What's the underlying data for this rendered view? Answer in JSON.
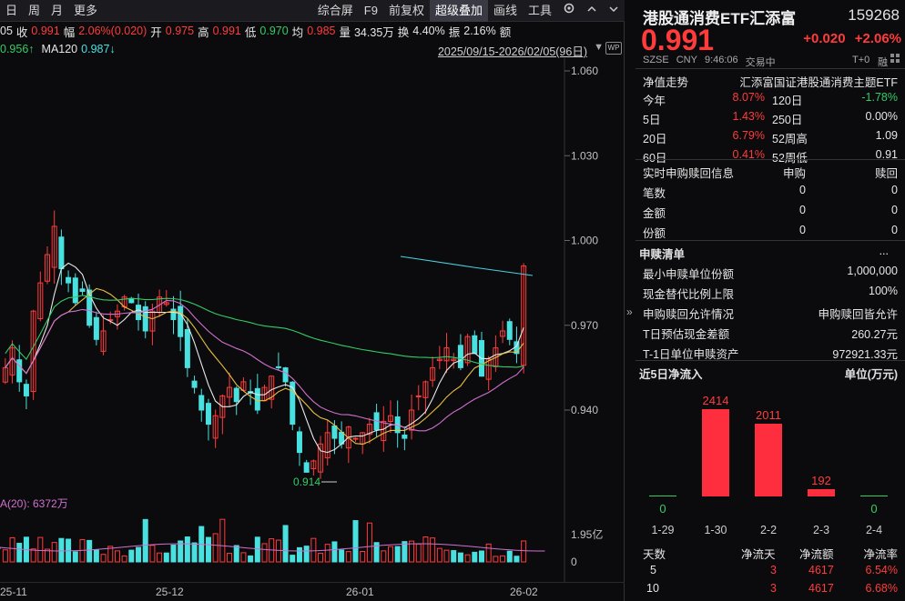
{
  "toolbar": {
    "left_items": [
      "日",
      "周",
      "月",
      "更多"
    ],
    "right_items": [
      "综合屏",
      "F9",
      "前复权",
      "超级叠加",
      "画线",
      "工具"
    ],
    "active_item": "超级叠加"
  },
  "quote": {
    "prev_suffix": "05",
    "close_label": "收",
    "close_value": "0.991",
    "amp_label": "幅",
    "amp_value": "2.06%(0.020)",
    "open_label": "开",
    "open_value": "0.975",
    "high_label": "高",
    "high_value": "0.991",
    "low_label": "低",
    "low_value": "0.970",
    "avg_label": "均",
    "avg_value": "0.985",
    "vol_label": "量",
    "vol_value": "34.35万",
    "turnover_label": "换",
    "turnover_value": "4.40%",
    "swing_label": "振",
    "swing_value": "2.16%",
    "amount_label": "额"
  },
  "ma": {
    "ma_prev_value": "0.956↑",
    "ma120_label": "MA120",
    "ma120_value": "0.987↓"
  },
  "date_range": "2025/09/15-2026/02/05(96日)",
  "price_axis": [
    "1.060",
    "1.030",
    "1.000",
    "0.970",
    "0.940"
  ],
  "vol_axis": [
    "1.95亿",
    "0"
  ],
  "vol_label": "A(20): 6372万",
  "low_marker": "0.914",
  "x_labels": [
    "25-11",
    "25-12",
    "26-01",
    "26-02"
  ],
  "colors": {
    "up": "#ff3b3b",
    "down": "#49e0e0",
    "ma5": "#e8e8e8",
    "ma10": "#e8c040",
    "ma20": "#d070d0",
    "ma60": "#33cc66",
    "ma120": "#49d0e0"
  },
  "fund": {
    "name": "港股通消费ETF汇添富",
    "code": "159268",
    "price": "0.991",
    "change": "+0.020",
    "change_pct": "+2.06%",
    "market": "SZSE",
    "currency": "CNY",
    "time": "9:46:06",
    "state": "交易中",
    "settle": "T+0",
    "margin": "融"
  },
  "nav": {
    "title": "净值走势",
    "index_name": "汇添富国证港股通消费主题ETF",
    "rows": [
      {
        "l1": "今年",
        "v1": "8.07%",
        "l2": "120日",
        "v2": "-1.78%"
      },
      {
        "l1": "5日",
        "v1": "1.43%",
        "l2": "250日",
        "v2": "0.00%"
      },
      {
        "l1": "20日",
        "v1": "6.79%",
        "l2": "52周高",
        "v2": "1.09"
      },
      {
        "l1": "60日",
        "v1": "0.41%",
        "l2": "52周低",
        "v2": "0.91"
      }
    ]
  },
  "realtime": {
    "title": "实时申购赎回信息",
    "col1": "申购",
    "col2": "赎回",
    "rows": [
      {
        "label": "笔数",
        "a": "0",
        "b": "0"
      },
      {
        "label": "金额",
        "a": "0",
        "b": "0"
      },
      {
        "label": "份额",
        "a": "0",
        "b": "0"
      }
    ]
  },
  "list": {
    "title": "申赎清单",
    "more": "...",
    "rows": [
      {
        "label": "最小申赎单位份额",
        "value": "1,000,000"
      },
      {
        "label": "现金替代比例上限",
        "value": "100%"
      },
      {
        "label": "申购赎回允许情况",
        "value": "申购赎回皆允许"
      },
      {
        "label": "T日预估现金差额",
        "value": "260.27元"
      },
      {
        "label": "T-1日单位申赎资产",
        "value": "972921.33元"
      }
    ]
  },
  "netflow": {
    "title": "近5日净流入",
    "unit": "单位(万元)",
    "bars": [
      {
        "date": "1-29",
        "value": 0
      },
      {
        "date": "1-30",
        "value": 2414
      },
      {
        "date": "2-2",
        "value": 2011
      },
      {
        "date": "2-3",
        "value": 192
      },
      {
        "date": "2-4",
        "value": 0
      }
    ],
    "table_headers": [
      "天数",
      "净流天",
      "净流额",
      "净流率"
    ],
    "table_rows": [
      [
        "5",
        "3",
        "4617",
        "6.54%"
      ],
      [
        "10",
        "3",
        "4617",
        "6.68%"
      ]
    ]
  }
}
